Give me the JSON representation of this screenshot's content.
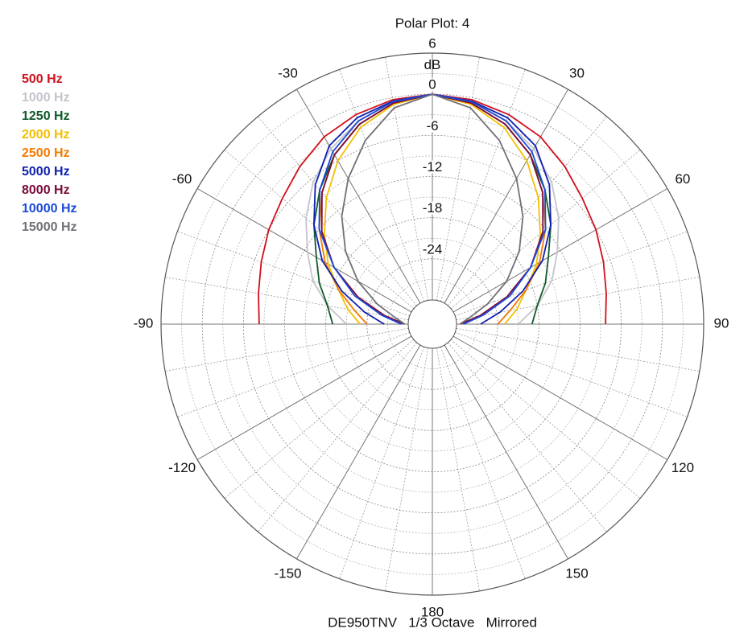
{
  "chart_data": {
    "type": "polar",
    "title": "Polar Plot: 4",
    "subtitle": "DE950TNV   1/3 Octave   Mirrored",
    "rlabel": "dB",
    "mirror": true,
    "theta": [
      0,
      10,
      20,
      30,
      40,
      50,
      60,
      70,
      80,
      90
    ],
    "rlim": [
      -30,
      6
    ],
    "rticks": [
      6,
      0,
      -6,
      -12,
      -18,
      -24
    ],
    "thetaticks": [
      -150,
      -120,
      -90,
      -60,
      -30,
      30,
      60,
      90,
      120,
      150,
      180
    ],
    "series": [
      {
        "name": "500 Hz",
        "color": "#d0101c",
        "values": [
          0,
          -0.3,
          -1,
          -2,
          -3.5,
          -5,
          -6,
          -7,
          -7.8,
          -8.3
        ]
      },
      {
        "name": "1000 Hz",
        "color": "#c4c4cc",
        "values": [
          0,
          -0.5,
          -2,
          -4,
          -6.5,
          -9.5,
          -12.5,
          -15,
          -18,
          -21
        ]
      },
      {
        "name": "1250 Hz",
        "color": "#0f5a2a",
        "values": [
          0,
          -0.8,
          -2.5,
          -5,
          -8,
          -11,
          -14,
          -16,
          -18,
          -19
        ]
      },
      {
        "name": "2000 Hz",
        "color": "#f2c000",
        "values": [
          0,
          -1,
          -3,
          -6,
          -9.5,
          -13,
          -16,
          -19,
          -21,
          -23
        ]
      },
      {
        "name": "2500 Hz",
        "color": "#f47a00",
        "values": [
          0,
          -0.8,
          -2.5,
          -5,
          -8.5,
          -12,
          -15.5,
          -19,
          -22,
          -24
        ]
      },
      {
        "name": "5000 Hz",
        "color": "#1020b0",
        "values": [
          0,
          -0.5,
          -1.5,
          -3.5,
          -7,
          -11,
          -15,
          -19.5,
          -23.5,
          -26.5
        ]
      },
      {
        "name": "8000 Hz",
        "color": "#7a0a3a",
        "values": [
          0,
          -0.8,
          -2.5,
          -5,
          -8.5,
          -12.5,
          -17,
          -22,
          -26.5,
          -29.5
        ]
      },
      {
        "name": "10000 Hz",
        "color": "#1a4ad8",
        "values": [
          0,
          -0.6,
          -2,
          -4.5,
          -8,
          -12,
          -17,
          -21.5,
          -26,
          -29
        ]
      },
      {
        "name": "15000 Hz",
        "color": "#707078",
        "values": [
          0,
          -1.5,
          -5,
          -9,
          -13,
          -17,
          -21,
          -25,
          -28,
          -29.5
        ]
      }
    ]
  }
}
